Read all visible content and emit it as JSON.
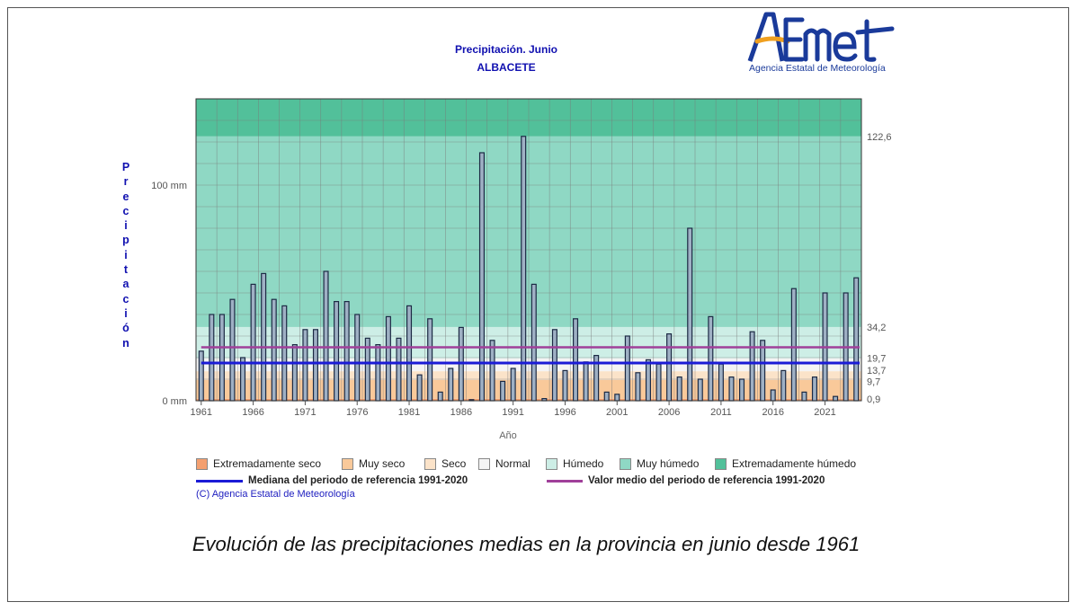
{
  "chart_data": {
    "type": "bar",
    "title": "Precipitación. Junio",
    "subtitle": "ALBACETE",
    "ylabel": "Precipitación",
    "xlabel": "Año",
    "unit": "mm",
    "ylim": [
      0,
      140
    ],
    "y_tick_labels": [
      {
        "value": 0,
        "label": "0 mm"
      },
      {
        "value": 100,
        "label": "100 mm"
      }
    ],
    "x_tick_labels": [
      "1961",
      "1966",
      "1971",
      "1976",
      "1981",
      "1986",
      "1991",
      "1996",
      "2001",
      "2006",
      "2011",
      "2016",
      "2021"
    ],
    "years_from": 1961,
    "years_to": 2024,
    "values": [
      23,
      40,
      40,
      47,
      20,
      54,
      59,
      47,
      44,
      26,
      33,
      33,
      60,
      46,
      46,
      40,
      29,
      26,
      39,
      29,
      44,
      12,
      38,
      4,
      15,
      34,
      0,
      115,
      28,
      9,
      15,
      122.6,
      54,
      1,
      33,
      14,
      38,
      18,
      21,
      4,
      3,
      30,
      13,
      19,
      17,
      31,
      11,
      80,
      10,
      39,
      17,
      11,
      10,
      32,
      28,
      5,
      14,
      52,
      4,
      11,
      50,
      2,
      50,
      57
    ],
    "thresholds": [
      {
        "value": 122.6,
        "label": "122,6"
      },
      {
        "value": 34.2,
        "label": "34,2"
      },
      {
        "value": 19.7,
        "label": "19,7"
      },
      {
        "value": 13.7,
        "label": "13,7"
      },
      {
        "value": 9.7,
        "label": "9,7"
      },
      {
        "value": 0.9,
        "label": "0,9"
      }
    ],
    "median": 17.5,
    "mean": 24.8,
    "grid": true
  },
  "colors": {
    "extremadamente_seco": "#f4a070",
    "muy_seco": "#f9c99a",
    "seco": "#fbe3c9",
    "normal": "#f4f4f4",
    "humedo": "#cdeee6",
    "muy_humedo": "#8fd8c4",
    "extremadamente_humedo": "#52c09a",
    "bar_fill": "#9fb0c4",
    "bar_stroke": "#1c2a44",
    "median_line": "#1b1bd6",
    "mean_line": "#a0409a"
  },
  "legend": {
    "categories": [
      "Extremadamente seco",
      "Muy seco",
      "Seco",
      "Normal",
      "Húmedo",
      "Muy húmedo",
      "Extremadamente húmedo"
    ],
    "median_label": "Mediana del periodo de referencia 1991-2020",
    "mean_label": "Valor medio del periodo de referencia 1991-2020"
  },
  "logo": {
    "brand": "AEMet",
    "name": "Agencia Estatal de Meteorología"
  },
  "copyright": "(C) Agencia Estatal de Meteorología",
  "caption": "Evolución de las precipitaciones medias en la provincia en junio desde 1961"
}
